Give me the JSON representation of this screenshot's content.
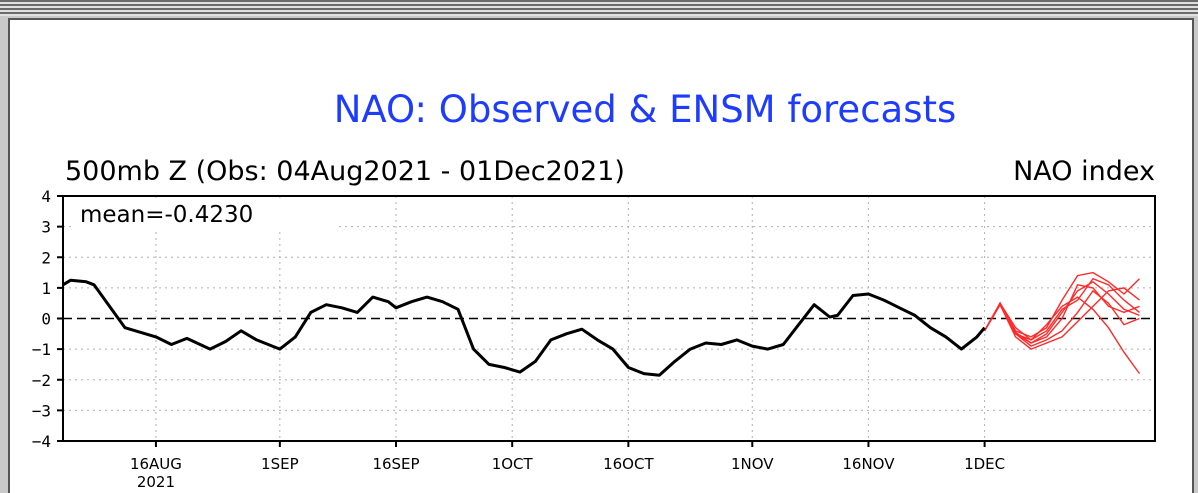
{
  "chart_data": {
    "type": "line",
    "title": "NAO: Observed & ENSM forecasts",
    "subtitle_left": "500mb Z (Obs: 04Aug2021 - 01Dec2021)",
    "subtitle_right": "NAO index",
    "annotation": "mean=-0.4230",
    "ylim": [
      -4,
      4
    ],
    "yticks": [
      "4",
      "3",
      "2",
      "1",
      "0",
      "-1",
      "-2",
      "-3",
      "-4"
    ],
    "xrange": [
      "2021-08-04",
      "2021-12-23"
    ],
    "xticks": [
      {
        "date": "2021-08-16",
        "label": "16AUG"
      },
      {
        "date": "2021-09-01",
        "label": "1SEP"
      },
      {
        "date": "2021-09-16",
        "label": "16SEP"
      },
      {
        "date": "2021-10-01",
        "label": "1OCT"
      },
      {
        "date": "2021-10-16",
        "label": "16OCT"
      },
      {
        "date": "2021-11-01",
        "label": "1NOV"
      },
      {
        "date": "2021-11-16",
        "label": "16NOV"
      },
      {
        "date": "2021-12-01",
        "label": "1DEC"
      }
    ],
    "xtick_year": "2021",
    "grid": true,
    "zero_line": "dashed",
    "observed": {
      "color": "#000000",
      "points": [
        [
          "2021-08-04",
          1.1
        ],
        [
          "2021-08-05",
          1.25
        ],
        [
          "2021-08-07",
          1.2
        ],
        [
          "2021-08-08",
          1.1
        ],
        [
          "2021-08-10",
          0.4
        ],
        [
          "2021-08-12",
          -0.3
        ],
        [
          "2021-08-14",
          -0.45
        ],
        [
          "2021-08-16",
          -0.6
        ],
        [
          "2021-08-18",
          -0.85
        ],
        [
          "2021-08-20",
          -0.65
        ],
        [
          "2021-08-23",
          -1.0
        ],
        [
          "2021-08-25",
          -0.75
        ],
        [
          "2021-08-27",
          -0.4
        ],
        [
          "2021-08-29",
          -0.7
        ],
        [
          "2021-09-01",
          -1.0
        ],
        [
          "2021-09-03",
          -0.6
        ],
        [
          "2021-09-05",
          0.2
        ],
        [
          "2021-09-07",
          0.45
        ],
        [
          "2021-09-09",
          0.35
        ],
        [
          "2021-09-11",
          0.2
        ],
        [
          "2021-09-13",
          0.7
        ],
        [
          "2021-09-15",
          0.55
        ],
        [
          "2021-09-16",
          0.35
        ],
        [
          "2021-09-18",
          0.55
        ],
        [
          "2021-09-20",
          0.7
        ],
        [
          "2021-09-22",
          0.55
        ],
        [
          "2021-09-24",
          0.3
        ],
        [
          "2021-09-26",
          -1.0
        ],
        [
          "2021-09-28",
          -1.5
        ],
        [
          "2021-09-30",
          -1.6
        ],
        [
          "2021-10-02",
          -1.75
        ],
        [
          "2021-10-04",
          -1.4
        ],
        [
          "2021-10-06",
          -0.7
        ],
        [
          "2021-10-08",
          -0.5
        ],
        [
          "2021-10-10",
          -0.35
        ],
        [
          "2021-10-12",
          -0.7
        ],
        [
          "2021-10-14",
          -1.0
        ],
        [
          "2021-10-16",
          -1.6
        ],
        [
          "2021-10-18",
          -1.8
        ],
        [
          "2021-10-20",
          -1.85
        ],
        [
          "2021-10-22",
          -1.4
        ],
        [
          "2021-10-24",
          -1.0
        ],
        [
          "2021-10-26",
          -0.8
        ],
        [
          "2021-10-28",
          -0.85
        ],
        [
          "2021-10-30",
          -0.7
        ],
        [
          "2021-11-01",
          -0.9
        ],
        [
          "2021-11-03",
          -1.0
        ],
        [
          "2021-11-05",
          -0.85
        ],
        [
          "2021-11-07",
          -0.2
        ],
        [
          "2021-11-09",
          0.45
        ],
        [
          "2021-11-11",
          0.05
        ],
        [
          "2021-11-12",
          0.1
        ],
        [
          "2021-11-14",
          0.75
        ],
        [
          "2021-11-16",
          0.8
        ],
        [
          "2021-11-18",
          0.6
        ],
        [
          "2021-11-20",
          0.35
        ],
        [
          "2021-11-22",
          0.1
        ],
        [
          "2021-11-24",
          -0.3
        ],
        [
          "2021-11-26",
          -0.6
        ],
        [
          "2021-11-28",
          -1.0
        ],
        [
          "2021-11-30",
          -0.6
        ],
        [
          "2021-12-01",
          -0.3
        ]
      ]
    },
    "forecast": {
      "color": "#ff2a2a",
      "members": [
        [
          [
            "2021-12-01",
            -0.4
          ],
          [
            "2021-12-03",
            0.5
          ],
          [
            "2021-12-05",
            -0.5
          ],
          [
            "2021-12-07",
            -0.8
          ],
          [
            "2021-12-09",
            -0.5
          ],
          [
            "2021-12-11",
            0.2
          ],
          [
            "2021-12-13",
            0.9
          ],
          [
            "2021-12-15",
            1.2
          ],
          [
            "2021-12-17",
            0.8
          ],
          [
            "2021-12-19",
            0.3
          ],
          [
            "2021-12-21",
            0.1
          ]
        ],
        [
          [
            "2021-12-01",
            -0.4
          ],
          [
            "2021-12-03",
            0.5
          ],
          [
            "2021-12-05",
            -0.4
          ],
          [
            "2021-12-07",
            -0.6
          ],
          [
            "2021-12-09",
            -0.3
          ],
          [
            "2021-12-11",
            0.6
          ],
          [
            "2021-12-13",
            1.4
          ],
          [
            "2021-12-15",
            1.5
          ],
          [
            "2021-12-17",
            1.2
          ],
          [
            "2021-12-19",
            0.8
          ],
          [
            "2021-12-21",
            1.3
          ]
        ],
        [
          [
            "2021-12-01",
            -0.4
          ],
          [
            "2021-12-03",
            0.45
          ],
          [
            "2021-12-05",
            -0.5
          ],
          [
            "2021-12-07",
            -0.9
          ],
          [
            "2021-12-09",
            -0.7
          ],
          [
            "2021-12-11",
            -0.4
          ],
          [
            "2021-12-13",
            0.2
          ],
          [
            "2021-12-15",
            0.9
          ],
          [
            "2021-12-17",
            0.5
          ],
          [
            "2021-12-19",
            -0.2
          ],
          [
            "2021-12-21",
            0.0
          ]
        ],
        [
          [
            "2021-12-01",
            -0.4
          ],
          [
            "2021-12-03",
            0.5
          ],
          [
            "2021-12-05",
            -0.3
          ],
          [
            "2021-12-07",
            -0.7
          ],
          [
            "2021-12-09",
            -0.2
          ],
          [
            "2021-12-11",
            0.4
          ],
          [
            "2021-12-13",
            0.7
          ],
          [
            "2021-12-15",
            0.3
          ],
          [
            "2021-12-17",
            -0.3
          ],
          [
            "2021-12-19",
            -1.1
          ],
          [
            "2021-12-21",
            -1.8
          ]
        ],
        [
          [
            "2021-12-01",
            -0.4
          ],
          [
            "2021-12-03",
            0.45
          ],
          [
            "2021-12-05",
            -0.6
          ],
          [
            "2021-12-07",
            -1.0
          ],
          [
            "2021-12-09",
            -0.8
          ],
          [
            "2021-12-11",
            -0.6
          ],
          [
            "2021-12-13",
            -0.1
          ],
          [
            "2021-12-15",
            0.4
          ],
          [
            "2021-12-17",
            0.9
          ],
          [
            "2021-12-19",
            1.0
          ],
          [
            "2021-12-21",
            0.6
          ]
        ],
        [
          [
            "2021-12-01",
            -0.4
          ],
          [
            "2021-12-03",
            0.5
          ],
          [
            "2021-12-05",
            -0.45
          ],
          [
            "2021-12-07",
            -0.8
          ],
          [
            "2021-12-09",
            -0.6
          ],
          [
            "2021-12-11",
            0.0
          ],
          [
            "2021-12-13",
            1.1
          ],
          [
            "2021-12-15",
            1.0
          ],
          [
            "2021-12-17",
            0.4
          ],
          [
            "2021-12-19",
            0.2
          ],
          [
            "2021-12-21",
            0.4
          ]
        ],
        [
          [
            "2021-12-01",
            -0.4
          ],
          [
            "2021-12-03",
            0.5
          ],
          [
            "2021-12-05",
            -0.5
          ],
          [
            "2021-12-07",
            -0.7
          ],
          [
            "2021-12-09",
            -0.4
          ],
          [
            "2021-12-11",
            0.3
          ],
          [
            "2021-12-13",
            0.6
          ],
          [
            "2021-12-15",
            1.3
          ],
          [
            "2021-12-17",
            1.1
          ],
          [
            "2021-12-19",
            0.6
          ],
          [
            "2021-12-21",
            0.2
          ]
        ]
      ]
    }
  }
}
